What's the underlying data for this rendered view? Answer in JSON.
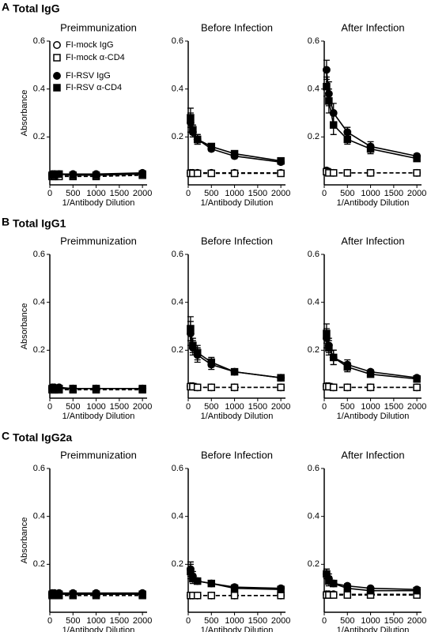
{
  "rows": [
    {
      "letter": "A",
      "title": "Total IgG"
    },
    {
      "letter": "B",
      "title": "Total IgG1"
    },
    {
      "letter": "C",
      "title": "Total IgG2a"
    }
  ],
  "chart_data": [
    {
      "type": "line",
      "title": "Preimmunization",
      "ylabel": "Absorbance",
      "xlabel": "1/Antibody Dilution",
      "legend": true,
      "x": [
        50,
        100,
        200,
        500,
        1000,
        2000
      ],
      "xlim": [
        0,
        2100
      ],
      "xticks": [
        0,
        500,
        1000,
        1500,
        2000
      ],
      "ylim": [
        0,
        0.6
      ],
      "yticks": [
        0.2,
        0.4,
        0.6
      ],
      "series": [
        {
          "name": "FI-mock IgG",
          "color": "#000000",
          "marker": "circle",
          "filled": false,
          "dashed": true,
          "values": [
            0.04,
            0.04,
            0.04,
            0.04,
            0.04,
            0.045
          ]
        },
        {
          "name": "FI-mock α-CD4",
          "color": "#000000",
          "marker": "square",
          "filled": false,
          "dashed": true,
          "values": [
            0.035,
            0.035,
            0.035,
            0.035,
            0.035,
            0.04
          ]
        },
        {
          "name": "FI-RSV IgG",
          "color": "#000000",
          "marker": "circle",
          "filled": true,
          "dashed": false,
          "values": [
            0.045,
            0.045,
            0.045,
            0.045,
            0.045,
            0.05
          ]
        },
        {
          "name": "FI-RSV α-CD4",
          "color": "#000000",
          "marker": "square",
          "filled": true,
          "dashed": false,
          "values": [
            0.04,
            0.04,
            0.045,
            0.04,
            0.04,
            0.045
          ]
        }
      ]
    },
    {
      "type": "line",
      "title": "Before Infection",
      "xlabel": "1/Antibody Dilution",
      "x": [
        50,
        100,
        200,
        500,
        1000,
        2000
      ],
      "xlim": [
        0,
        2100
      ],
      "xticks": [
        0,
        500,
        1000,
        1500,
        2000
      ],
      "ylim": [
        0,
        0.6
      ],
      "yticks": [
        0.2,
        0.4,
        0.6
      ],
      "series": [
        {
          "color": "#000000",
          "marker": "circle",
          "filled": false,
          "dashed": true,
          "values": [
            0.05,
            0.05,
            0.05,
            0.05,
            0.05,
            0.05
          ]
        },
        {
          "color": "#000000",
          "marker": "square",
          "filled": false,
          "dashed": true,
          "values": [
            0.048,
            0.048,
            0.048,
            0.048,
            0.048,
            0.048
          ]
        },
        {
          "color": "#000000",
          "marker": "circle",
          "filled": true,
          "dashed": false,
          "values": [
            0.26,
            0.22,
            0.19,
            0.15,
            0.12,
            0.095
          ],
          "errors": [
            0.04,
            0.02,
            0.02,
            0.01,
            0.01,
            0.005
          ]
        },
        {
          "color": "#000000",
          "marker": "square",
          "filled": true,
          "dashed": false,
          "values": [
            0.28,
            0.23,
            0.19,
            0.16,
            0.13,
            0.1
          ],
          "errors": [
            0.04,
            0.02,
            0.02,
            0.01,
            0.01,
            0.005
          ]
        }
      ]
    },
    {
      "type": "line",
      "title": "After Infection",
      "xlabel": "1/Antibody Dilution",
      "x": [
        50,
        100,
        200,
        500,
        1000,
        2000
      ],
      "xlim": [
        0,
        2100
      ],
      "xticks": [
        0,
        500,
        1000,
        1500,
        2000
      ],
      "ylim": [
        0,
        0.6
      ],
      "yticks": [
        0.2,
        0.4,
        0.6
      ],
      "series": [
        {
          "color": "#000000",
          "marker": "circle",
          "filled": false,
          "dashed": true,
          "values": [
            0.06,
            0.055,
            0.05,
            0.05,
            0.05,
            0.05
          ]
        },
        {
          "color": "#000000",
          "marker": "square",
          "filled": false,
          "dashed": true,
          "values": [
            0.055,
            0.05,
            0.05,
            0.05,
            0.05,
            0.05
          ]
        },
        {
          "color": "#000000",
          "marker": "circle",
          "filled": true,
          "dashed": false,
          "values": [
            0.48,
            0.38,
            0.3,
            0.22,
            0.16,
            0.12
          ],
          "errors": [
            0.04,
            0.05,
            0.04,
            0.02,
            0.02,
            0.01
          ]
        },
        {
          "color": "#000000",
          "marker": "square",
          "filled": true,
          "dashed": false,
          "values": [
            0.41,
            0.35,
            0.25,
            0.19,
            0.15,
            0.11
          ],
          "errors": [
            0.04,
            0.05,
            0.04,
            0.02,
            0.02,
            0.01
          ]
        }
      ]
    },
    {
      "type": "line",
      "title": "Preimmunization",
      "ylabel": "Absorbance",
      "xlabel": "1/Antibody Dilution",
      "x": [
        50,
        100,
        200,
        500,
        1000,
        2000
      ],
      "xlim": [
        0,
        2100
      ],
      "xticks": [
        0,
        500,
        1000,
        1500,
        2000
      ],
      "ylim": [
        0,
        0.6
      ],
      "yticks": [
        0.2,
        0.4,
        0.6
      ],
      "series": [
        {
          "color": "#000000",
          "marker": "circle",
          "filled": false,
          "dashed": true,
          "values": [
            0.04,
            0.04,
            0.04,
            0.04,
            0.04,
            0.04
          ]
        },
        {
          "color": "#000000",
          "marker": "square",
          "filled": false,
          "dashed": true,
          "values": [
            0.035,
            0.035,
            0.035,
            0.035,
            0.035,
            0.035
          ]
        },
        {
          "color": "#000000",
          "marker": "circle",
          "filled": true,
          "dashed": false,
          "values": [
            0.045,
            0.045,
            0.045,
            0.04,
            0.04,
            0.04
          ]
        },
        {
          "color": "#000000",
          "marker": "square",
          "filled": true,
          "dashed": false,
          "values": [
            0.04,
            0.04,
            0.04,
            0.04,
            0.04,
            0.04
          ]
        }
      ]
    },
    {
      "type": "line",
      "title": "Before Infection",
      "xlabel": "1/Antibody Dilution",
      "x": [
        50,
        100,
        200,
        500,
        1000,
        2000
      ],
      "xlim": [
        0,
        2100
      ],
      "xticks": [
        0,
        500,
        1000,
        1500,
        2000
      ],
      "ylim": [
        0,
        0.6
      ],
      "yticks": [
        0.2,
        0.4,
        0.6
      ],
      "series": [
        {
          "color": "#000000",
          "marker": "circle",
          "filled": false,
          "dashed": true,
          "values": [
            0.05,
            0.05,
            0.045,
            0.045,
            0.045,
            0.045
          ]
        },
        {
          "color": "#000000",
          "marker": "square",
          "filled": false,
          "dashed": true,
          "values": [
            0.048,
            0.048,
            0.045,
            0.045,
            0.045,
            0.045
          ]
        },
        {
          "color": "#000000",
          "marker": "circle",
          "filled": true,
          "dashed": false,
          "values": [
            0.27,
            0.21,
            0.18,
            0.14,
            0.11,
            0.085
          ],
          "errors": [
            0.05,
            0.03,
            0.03,
            0.02,
            0.01,
            0.005
          ]
        },
        {
          "color": "#000000",
          "marker": "square",
          "filled": true,
          "dashed": false,
          "values": [
            0.29,
            0.22,
            0.19,
            0.15,
            0.11,
            0.085
          ],
          "errors": [
            0.05,
            0.03,
            0.03,
            0.02,
            0.01,
            0.005
          ]
        }
      ]
    },
    {
      "type": "line",
      "title": "After Infection",
      "xlabel": "1/Antibody Dilution",
      "x": [
        50,
        100,
        200,
        500,
        1000,
        2000
      ],
      "xlim": [
        0,
        2100
      ],
      "xticks": [
        0,
        500,
        1000,
        1500,
        2000
      ],
      "ylim": [
        0,
        0.6
      ],
      "yticks": [
        0.2,
        0.4,
        0.6
      ],
      "series": [
        {
          "color": "#000000",
          "marker": "circle",
          "filled": false,
          "dashed": true,
          "values": [
            0.05,
            0.05,
            0.045,
            0.045,
            0.045,
            0.045
          ]
        },
        {
          "color": "#000000",
          "marker": "square",
          "filled": false,
          "dashed": true,
          "values": [
            0.048,
            0.048,
            0.045,
            0.045,
            0.045,
            0.045
          ]
        },
        {
          "color": "#000000",
          "marker": "circle",
          "filled": true,
          "dashed": false,
          "values": [
            0.25,
            0.22,
            0.17,
            0.14,
            0.11,
            0.085
          ],
          "errors": [
            0.04,
            0.03,
            0.03,
            0.02,
            0.01,
            0.005
          ]
        },
        {
          "color": "#000000",
          "marker": "square",
          "filled": true,
          "dashed": false,
          "values": [
            0.27,
            0.21,
            0.17,
            0.13,
            0.1,
            0.08
          ],
          "errors": [
            0.04,
            0.03,
            0.03,
            0.02,
            0.01,
            0.005
          ]
        }
      ]
    },
    {
      "type": "line",
      "title": "Preimmunization",
      "ylabel": "Absorbance",
      "xlabel": "1/Antibody Dilution",
      "x": [
        50,
        100,
        200,
        500,
        1000,
        2000
      ],
      "xlim": [
        0,
        2100
      ],
      "xticks": [
        0,
        500,
        1000,
        1500,
        2000
      ],
      "ylim": [
        0,
        0.6
      ],
      "yticks": [
        0.2,
        0.4,
        0.6
      ],
      "series": [
        {
          "color": "#000000",
          "marker": "circle",
          "filled": false,
          "dashed": true,
          "values": [
            0.075,
            0.075,
            0.075,
            0.075,
            0.075,
            0.075
          ]
        },
        {
          "color": "#000000",
          "marker": "square",
          "filled": false,
          "dashed": true,
          "values": [
            0.07,
            0.07,
            0.07,
            0.07,
            0.07,
            0.07
          ]
        },
        {
          "color": "#000000",
          "marker": "circle",
          "filled": true,
          "dashed": false,
          "values": [
            0.08,
            0.08,
            0.08,
            0.08,
            0.08,
            0.08
          ]
        },
        {
          "color": "#000000",
          "marker": "square",
          "filled": true,
          "dashed": false,
          "values": [
            0.075,
            0.075,
            0.075,
            0.075,
            0.075,
            0.075
          ]
        }
      ]
    },
    {
      "type": "line",
      "title": "Before Infection",
      "xlabel": "1/Antibody Dilution",
      "x": [
        50,
        100,
        200,
        500,
        1000,
        2000
      ],
      "xlim": [
        0,
        2100
      ],
      "xticks": [
        0,
        500,
        1000,
        1500,
        2000
      ],
      "ylim": [
        0,
        0.6
      ],
      "yticks": [
        0.2,
        0.4,
        0.6
      ],
      "series": [
        {
          "color": "#000000",
          "marker": "circle",
          "filled": false,
          "dashed": true,
          "values": [
            0.07,
            0.07,
            0.07,
            0.07,
            0.07,
            0.07
          ]
        },
        {
          "color": "#000000",
          "marker": "square",
          "filled": false,
          "dashed": true,
          "values": [
            0.07,
            0.07,
            0.07,
            0.07,
            0.07,
            0.07
          ]
        },
        {
          "color": "#000000",
          "marker": "circle",
          "filled": true,
          "dashed": false,
          "values": [
            0.18,
            0.15,
            0.13,
            0.12,
            0.105,
            0.1
          ],
          "errors": [
            0.03,
            0.02,
            0.01,
            0.01,
            0.01,
            0.005
          ]
        },
        {
          "color": "#000000",
          "marker": "square",
          "filled": true,
          "dashed": false,
          "values": [
            0.17,
            0.14,
            0.13,
            0.12,
            0.1,
            0.095
          ],
          "errors": [
            0.03,
            0.02,
            0.01,
            0.01,
            0.01,
            0.005
          ]
        }
      ]
    },
    {
      "type": "line",
      "title": "After Infection",
      "xlabel": "1/Antibody Dilution",
      "x": [
        50,
        100,
        200,
        500,
        1000,
        2000
      ],
      "xlim": [
        0,
        2100
      ],
      "xticks": [
        0,
        500,
        1000,
        1500,
        2000
      ],
      "ylim": [
        0,
        0.6
      ],
      "yticks": [
        0.2,
        0.4,
        0.6
      ],
      "series": [
        {
          "color": "#000000",
          "marker": "circle",
          "filled": false,
          "dashed": true,
          "values": [
            0.075,
            0.075,
            0.075,
            0.075,
            0.075,
            0.075
          ]
        },
        {
          "color": "#000000",
          "marker": "square",
          "filled": false,
          "dashed": true,
          "values": [
            0.072,
            0.072,
            0.072,
            0.072,
            0.072,
            0.072
          ]
        },
        {
          "color": "#000000",
          "marker": "circle",
          "filled": true,
          "dashed": false,
          "values": [
            0.16,
            0.14,
            0.12,
            0.11,
            0.1,
            0.095
          ],
          "errors": [
            0.02,
            0.02,
            0.01,
            0.01,
            0.005,
            0.005
          ]
        },
        {
          "color": "#000000",
          "marker": "square",
          "filled": true,
          "dashed": false,
          "values": [
            0.16,
            0.13,
            0.12,
            0.1,
            0.09,
            0.09
          ],
          "errors": [
            0.02,
            0.02,
            0.01,
            0.01,
            0.005,
            0.005
          ]
        }
      ]
    }
  ]
}
